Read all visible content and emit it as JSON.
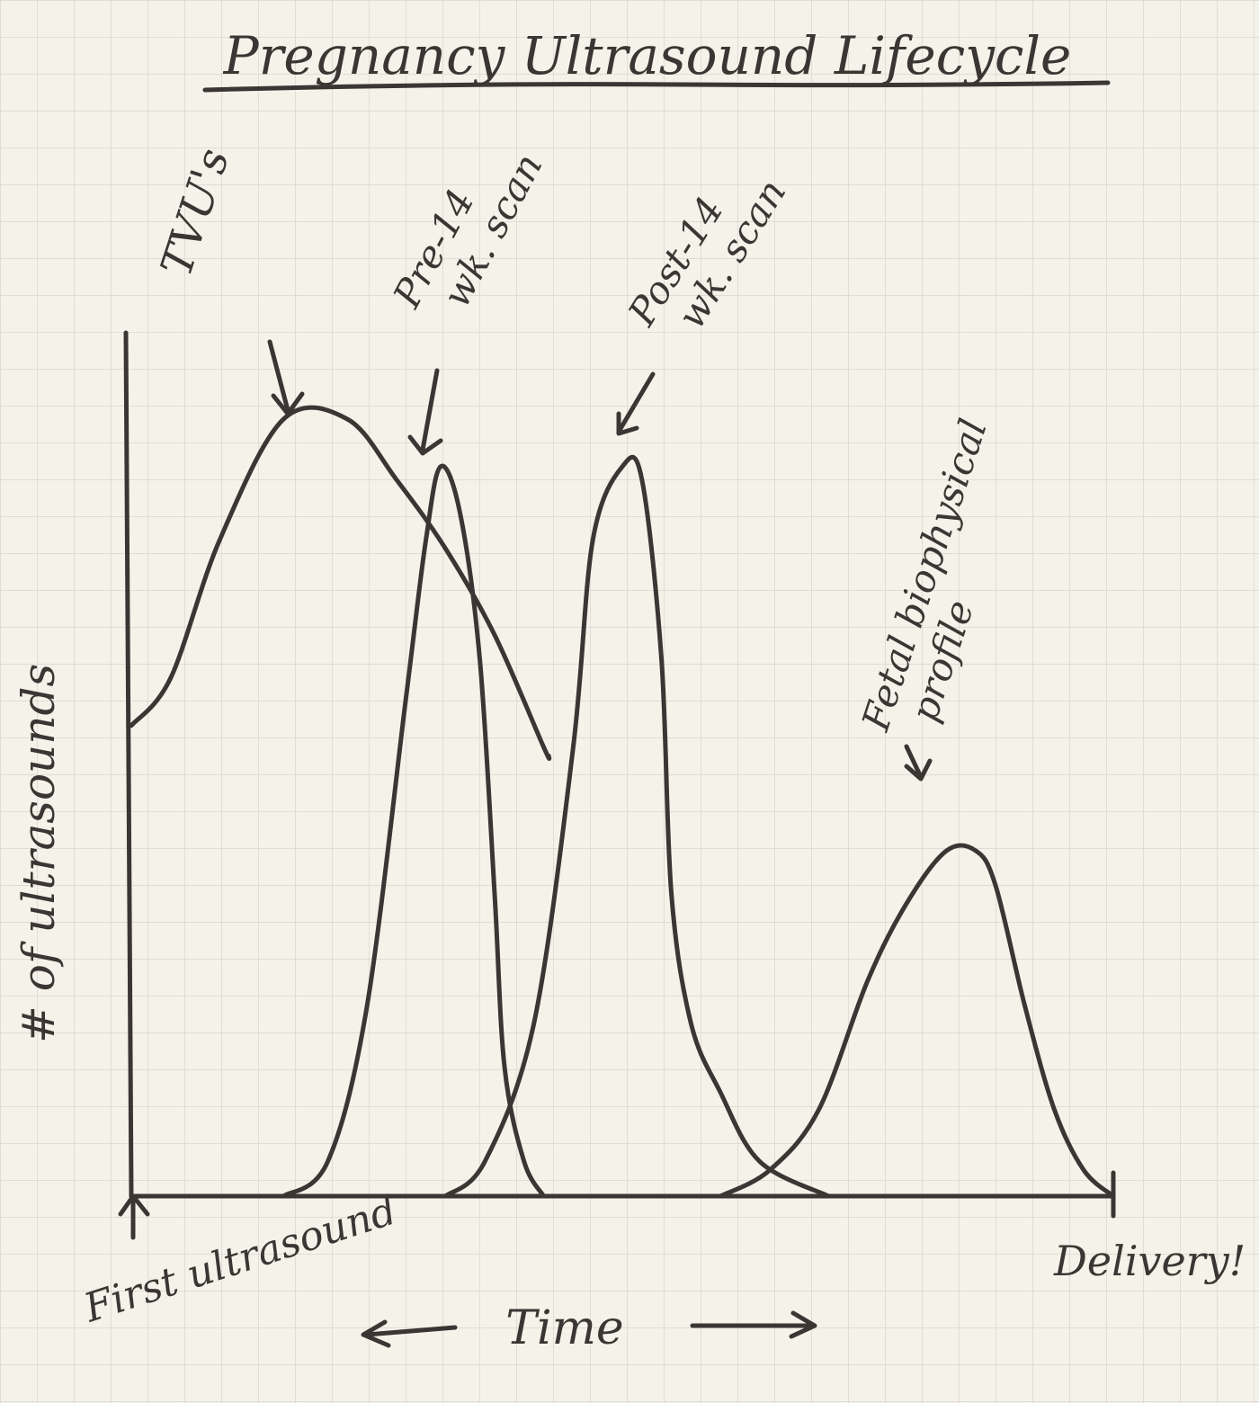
{
  "chart_data": {
    "type": "line",
    "title": "Pregnancy Ultrasound Lifecycle",
    "ylabel": "# of ultrasounds",
    "xlabel": "Time",
    "x_start_label": "First ultrasound",
    "x_end_label": "Delivery!",
    "xlim": [
      0,
      1
    ],
    "ylim": [
      0,
      1
    ],
    "grid": true,
    "series": [
      {
        "name": "TVU's",
        "annotation": "TVU's",
        "points": [
          [
            0,
            0.545
          ],
          [
            0.04,
            0.6
          ],
          [
            0.09,
            0.76
          ],
          [
            0.155,
            0.9
          ],
          [
            0.22,
            0.9
          ],
          [
            0.27,
            0.83
          ],
          [
            0.32,
            0.75
          ],
          [
            0.37,
            0.65
          ],
          [
            0.42,
            0.52
          ],
          [
            0.425,
            0.51
          ]
        ]
      },
      {
        "name": "Pre-14 wk. scan",
        "annotation": "Pre-14 wk. scan",
        "points": [
          [
            0.155,
            0.0
          ],
          [
            0.2,
            0.04
          ],
          [
            0.24,
            0.22
          ],
          [
            0.28,
            0.58
          ],
          [
            0.3,
            0.76
          ],
          [
            0.315,
            0.845
          ],
          [
            0.335,
            0.79
          ],
          [
            0.355,
            0.62
          ],
          [
            0.37,
            0.35
          ],
          [
            0.38,
            0.15
          ],
          [
            0.4,
            0.04
          ],
          [
            0.42,
            0.0
          ]
        ]
      },
      {
        "name": "Post-14 wk. scan",
        "annotation": "Post-14 wk. scan",
        "points": [
          [
            0.32,
            0.0
          ],
          [
            0.36,
            0.04
          ],
          [
            0.41,
            0.2
          ],
          [
            0.45,
            0.52
          ],
          [
            0.47,
            0.76
          ],
          [
            0.5,
            0.845
          ],
          [
            0.52,
            0.83
          ],
          [
            0.54,
            0.62
          ],
          [
            0.55,
            0.35
          ],
          [
            0.57,
            0.2
          ],
          [
            0.6,
            0.12
          ],
          [
            0.64,
            0.04
          ],
          [
            0.71,
            0.0
          ]
        ]
      },
      {
        "name": "Fetal biophysical profile",
        "annotation": "Fetal biophysical profile",
        "points": [
          [
            0.6,
            0.0
          ],
          [
            0.65,
            0.03
          ],
          [
            0.7,
            0.1
          ],
          [
            0.75,
            0.25
          ],
          [
            0.79,
            0.34
          ],
          [
            0.83,
            0.4
          ],
          [
            0.86,
            0.4
          ],
          [
            0.88,
            0.36
          ],
          [
            0.91,
            0.22
          ],
          [
            0.94,
            0.1
          ],
          [
            0.97,
            0.03
          ],
          [
            1.0,
            0.0
          ]
        ]
      }
    ]
  },
  "colors": {
    "paper": "#f5f2ea",
    "grid": "#d9d6cf",
    "ink": "#3b3633"
  }
}
